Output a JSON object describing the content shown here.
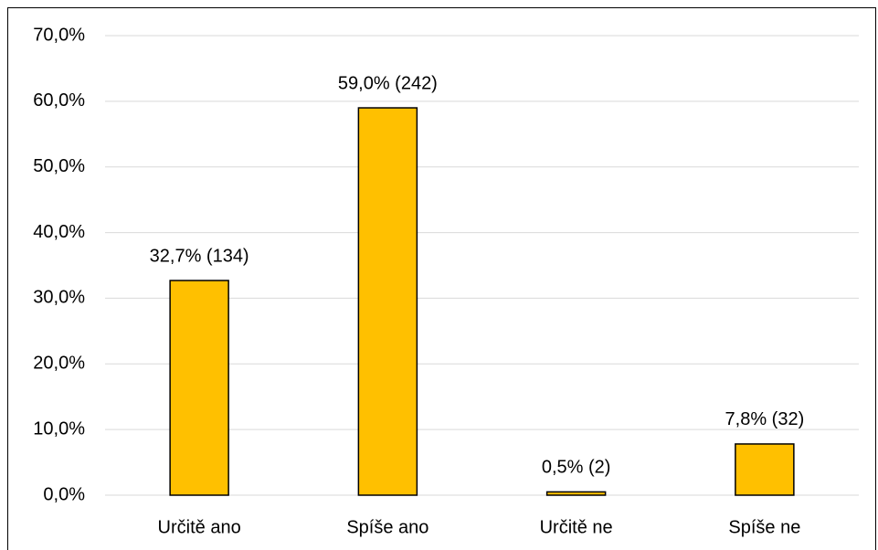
{
  "chart_data": {
    "type": "bar",
    "categories": [
      "Určitě ano",
      "Spíše ano",
      "Určitě ne",
      "Spíše ne"
    ],
    "values": [
      32.7,
      59.0,
      0.5,
      7.8
    ],
    "value_labels": [
      "32,7% (134)",
      "59,0% (242)",
      "0,5% (2)",
      "7,8% (32)"
    ],
    "color": "#ffc000",
    "ylim": [
      0,
      70
    ],
    "yticks": [
      {
        "value": 0,
        "label": "0,0%"
      },
      {
        "value": 10,
        "label": "10,0%"
      },
      {
        "value": 20,
        "label": "20,0%"
      },
      {
        "value": 30,
        "label": "30,0%"
      },
      {
        "value": 40,
        "label": "40,0%"
      },
      {
        "value": 50,
        "label": "50,0%"
      },
      {
        "value": 60,
        "label": "60,0%"
      },
      {
        "value": 70,
        "label": "70,0%"
      }
    ],
    "grid": true
  }
}
